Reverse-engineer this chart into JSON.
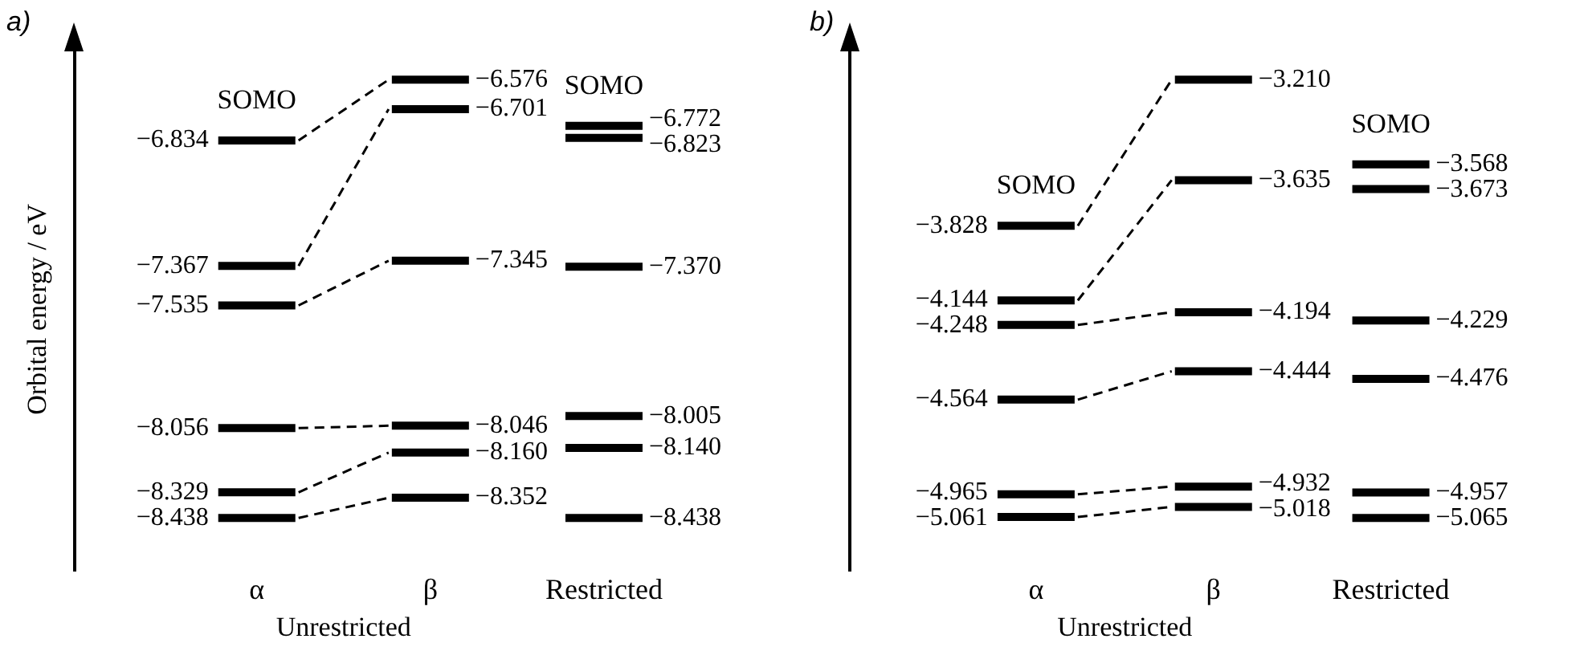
{
  "chart_data": [
    {
      "type": "other",
      "title": "a)",
      "ylabel": "Orbital energy / eV",
      "xlabel": "Unrestricted",
      "categories": [
        "α",
        "β",
        "Restricted"
      ],
      "series": [
        {
          "color": "#000000",
          "values": [
            -6.834,
            -6.576,
            -6.772
          ],
          "value_labels": [
            "−6.834",
            "−6.576",
            "−6.772"
          ]
        },
        {
          "color": "#000000",
          "values": [
            -7.367,
            -6.701,
            -6.823
          ],
          "value_labels": [
            "−7.367",
            "−6.701",
            "−6.823"
          ]
        },
        {
          "color": "#000000",
          "values": [
            -7.535,
            -7.345,
            -7.37
          ],
          "value_labels": [
            "−7.535",
            "−7.345",
            "−7.370"
          ]
        },
        {
          "color": "#000000",
          "values": [
            -8.056,
            -8.046,
            -8.005
          ],
          "value_labels": [
            "−8.056",
            "−8.046",
            "−8.005"
          ]
        },
        {
          "color": "#000000",
          "values": [
            -8.329,
            -8.16,
            -8.14
          ],
          "value_labels": [
            "−8.329",
            "−8.160",
            "−8.140"
          ]
        },
        {
          "color": "#000000",
          "values": [
            -8.438,
            -8.352,
            -8.438
          ],
          "value_labels": [
            "−8.438",
            "−8.352",
            "−8.438"
          ]
        }
      ],
      "annotations": [
        {
          "text": "SOMO",
          "x": "α"
        },
        {
          "text": "SOMO",
          "x": "Restricted"
        }
      ]
    },
    {
      "type": "other",
      "title": "b)",
      "xlabel": "Unrestricted",
      "categories": [
        "α",
        "β",
        "Restricted"
      ],
      "series": [
        {
          "color": "#000000",
          "values": [
            -3.828,
            -3.21,
            -3.568
          ],
          "value_labels": [
            "−3.828",
            "−3.210",
            "−3.568"
          ]
        },
        {
          "color": "#000000",
          "values": [
            -4.144,
            -3.635,
            -3.673
          ],
          "value_labels": [
            "−4.144",
            "−3.635",
            "−3.673"
          ]
        },
        {
          "color": "#000000",
          "values": [
            -4.248,
            -4.194,
            -4.229
          ],
          "value_labels": [
            "−4.248",
            "−4.194",
            "−4.229"
          ]
        },
        {
          "color": "#000000",
          "values": [
            -4.564,
            -4.444,
            -4.476
          ],
          "value_labels": [
            "−4.564",
            "−4.444",
            "−4.476"
          ]
        },
        {
          "color": "#000000",
          "values": [
            -4.965,
            -4.932,
            -4.957
          ],
          "value_labels": [
            "−4.965",
            "−4.932",
            "−4.957"
          ]
        },
        {
          "color": "#000000",
          "values": [
            -5.061,
            -5.018,
            -5.065
          ],
          "value_labels": [
            "−5.061",
            "−5.018",
            "−5.065"
          ]
        }
      ],
      "annotations": [
        {
          "text": "SOMO",
          "x": "α"
        },
        {
          "text": "SOMO",
          "x": "Restricted"
        }
      ]
    }
  ]
}
